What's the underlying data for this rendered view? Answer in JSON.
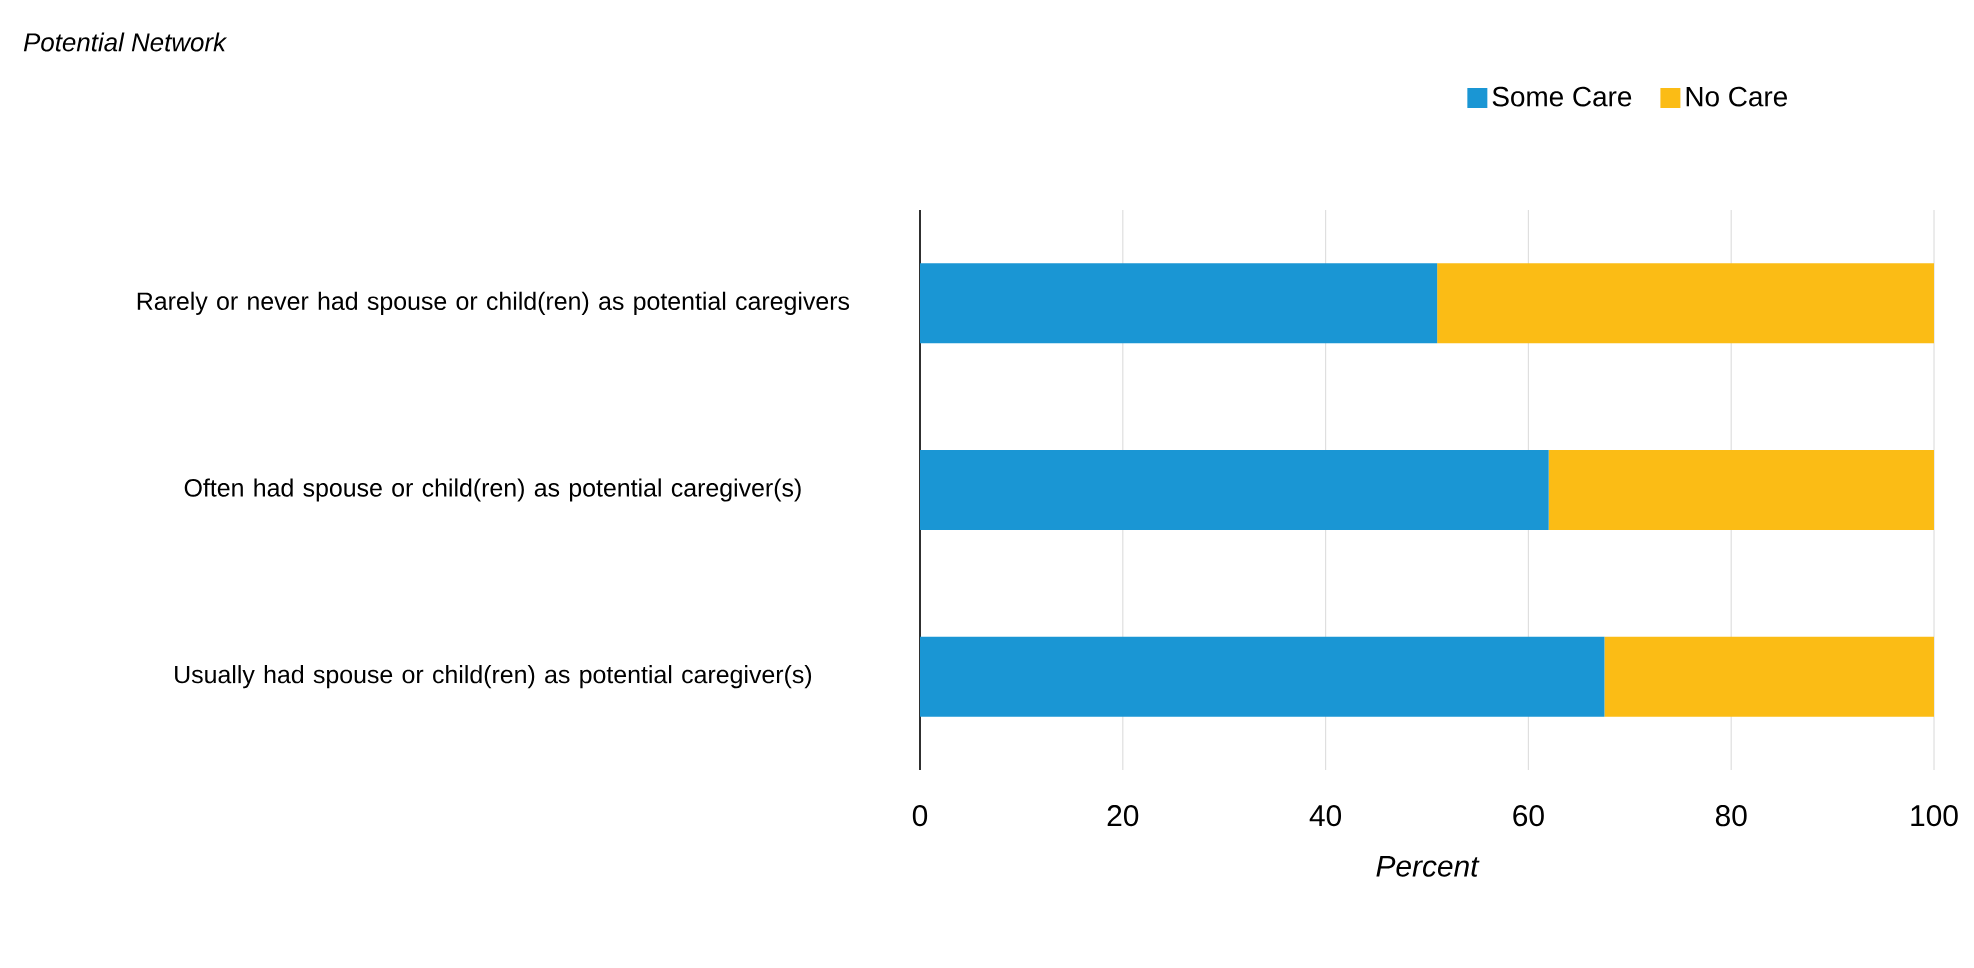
{
  "chart_data": {
    "type": "bar",
    "orientation": "horizontal",
    "stacked": true,
    "title": "Potential Network",
    "xlabel": "Percent",
    "categories": [
      "Rarely or never had spouse or child(ren) as potential caregivers",
      "Often had spouse or child(ren) as potential caregiver(s)",
      "Usually had spouse or child(ren) as potential caregiver(s)"
    ],
    "series": [
      {
        "name": "Some Care",
        "color": "#1a96d4",
        "values": [
          51,
          62,
          67.5
        ]
      },
      {
        "name": "No Care",
        "color": "#fbbc15",
        "values": [
          49,
          38,
          32.5
        ]
      }
    ],
    "xlim": [
      0,
      100
    ],
    "xticks": [
      0,
      20,
      40,
      60,
      80,
      100
    ],
    "grid": "x",
    "legend": "top"
  }
}
